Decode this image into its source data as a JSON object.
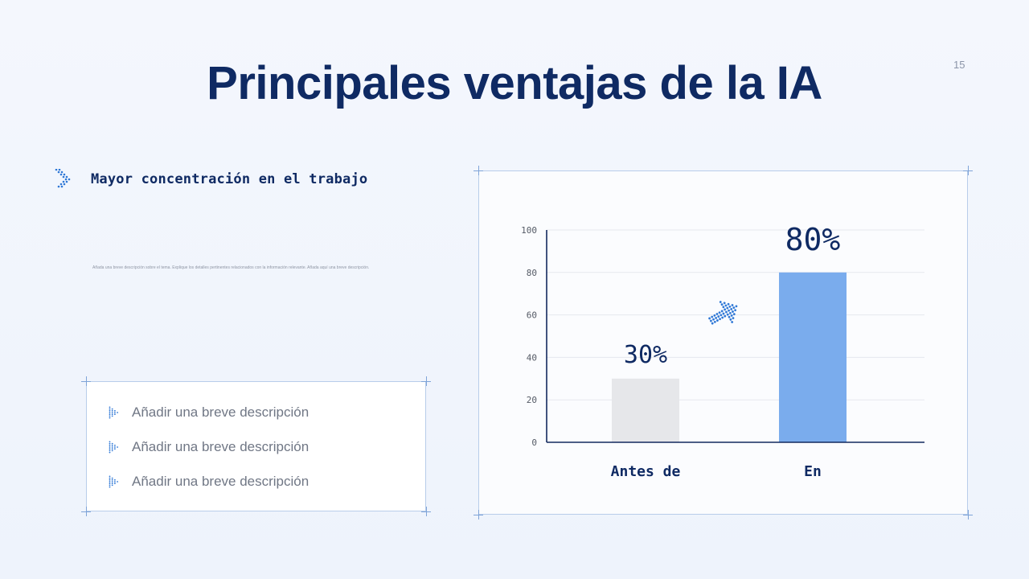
{
  "slide": {
    "title": "Principales ventajas de la IA",
    "page_number": "15"
  },
  "left": {
    "heading": "Mayor concentración en el trabajo",
    "description": "Añada una breve descripción sobre el tema. Explique los detalles pertinentes relacionados con la información relevante. Añada aquí una breve descripción.",
    "list_items": [
      "Añadir una breve descripción",
      "Añadir una breve descripción",
      "Añadir una breve descripción"
    ]
  },
  "chart_data": {
    "type": "bar",
    "categories": [
      "Antes de",
      "En"
    ],
    "values": [
      30,
      80
    ],
    "data_labels": [
      "30%",
      "80%"
    ],
    "y_ticks": [
      "0",
      "20",
      "40",
      "60",
      "80",
      "100"
    ],
    "ylim": [
      0,
      100
    ],
    "grid": true,
    "bar_colors": [
      "#e6e7ea",
      "#7aaced"
    ],
    "axis_color": "#13295e",
    "label_color": "#0f2a63"
  },
  "colors": {
    "title": "#0f2a63",
    "accent": "#2f78d6",
    "card_border": "#b8cdea"
  },
  "icons": {
    "heading_icon": "dotted-chevron-right-icon",
    "bullet_icon": "dotted-triangle-bullet-icon",
    "trend_icon": "dotted-arrow-up-right-icon"
  }
}
